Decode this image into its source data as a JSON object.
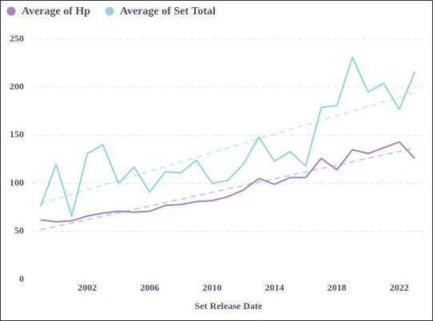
{
  "chart_data": {
    "type": "line",
    "x_label": "Set Release Date",
    "x": [
      1999,
      2000,
      2001,
      2002,
      2003,
      2004,
      2005,
      2006,
      2007,
      2008,
      2009,
      2010,
      2011,
      2012,
      2013,
      2014,
      2015,
      2016,
      2017,
      2018,
      2019,
      2020,
      2021,
      2022,
      2023
    ],
    "series": [
      {
        "name": "Average of Hp",
        "color": "#a484c0",
        "values": [
          62,
          60,
          61,
          66,
          69,
          71,
          70,
          71,
          77,
          78,
          81,
          82,
          86,
          93,
          105,
          99,
          106,
          106,
          126,
          114,
          135,
          131,
          137,
          143,
          126
        ]
      },
      {
        "name": "Average of Set Total",
        "color": "#93d5d8",
        "values": [
          76,
          120,
          66,
          131,
          140,
          100,
          117,
          91,
          112,
          111,
          124,
          100,
          103,
          120,
          148,
          123,
          133,
          118,
          179,
          181,
          231,
          195,
          204,
          177,
          216
        ]
      }
    ],
    "xlim": [
      1998.45,
      2023.55
    ],
    "xticks": [
      2002,
      2006,
      2010,
      2014,
      2018,
      2022
    ],
    "ylim": [
      0,
      250
    ],
    "yticks": [
      0,
      50,
      100,
      150,
      200,
      250
    ],
    "grid": true,
    "trendline": true,
    "legend": "top-left"
  }
}
